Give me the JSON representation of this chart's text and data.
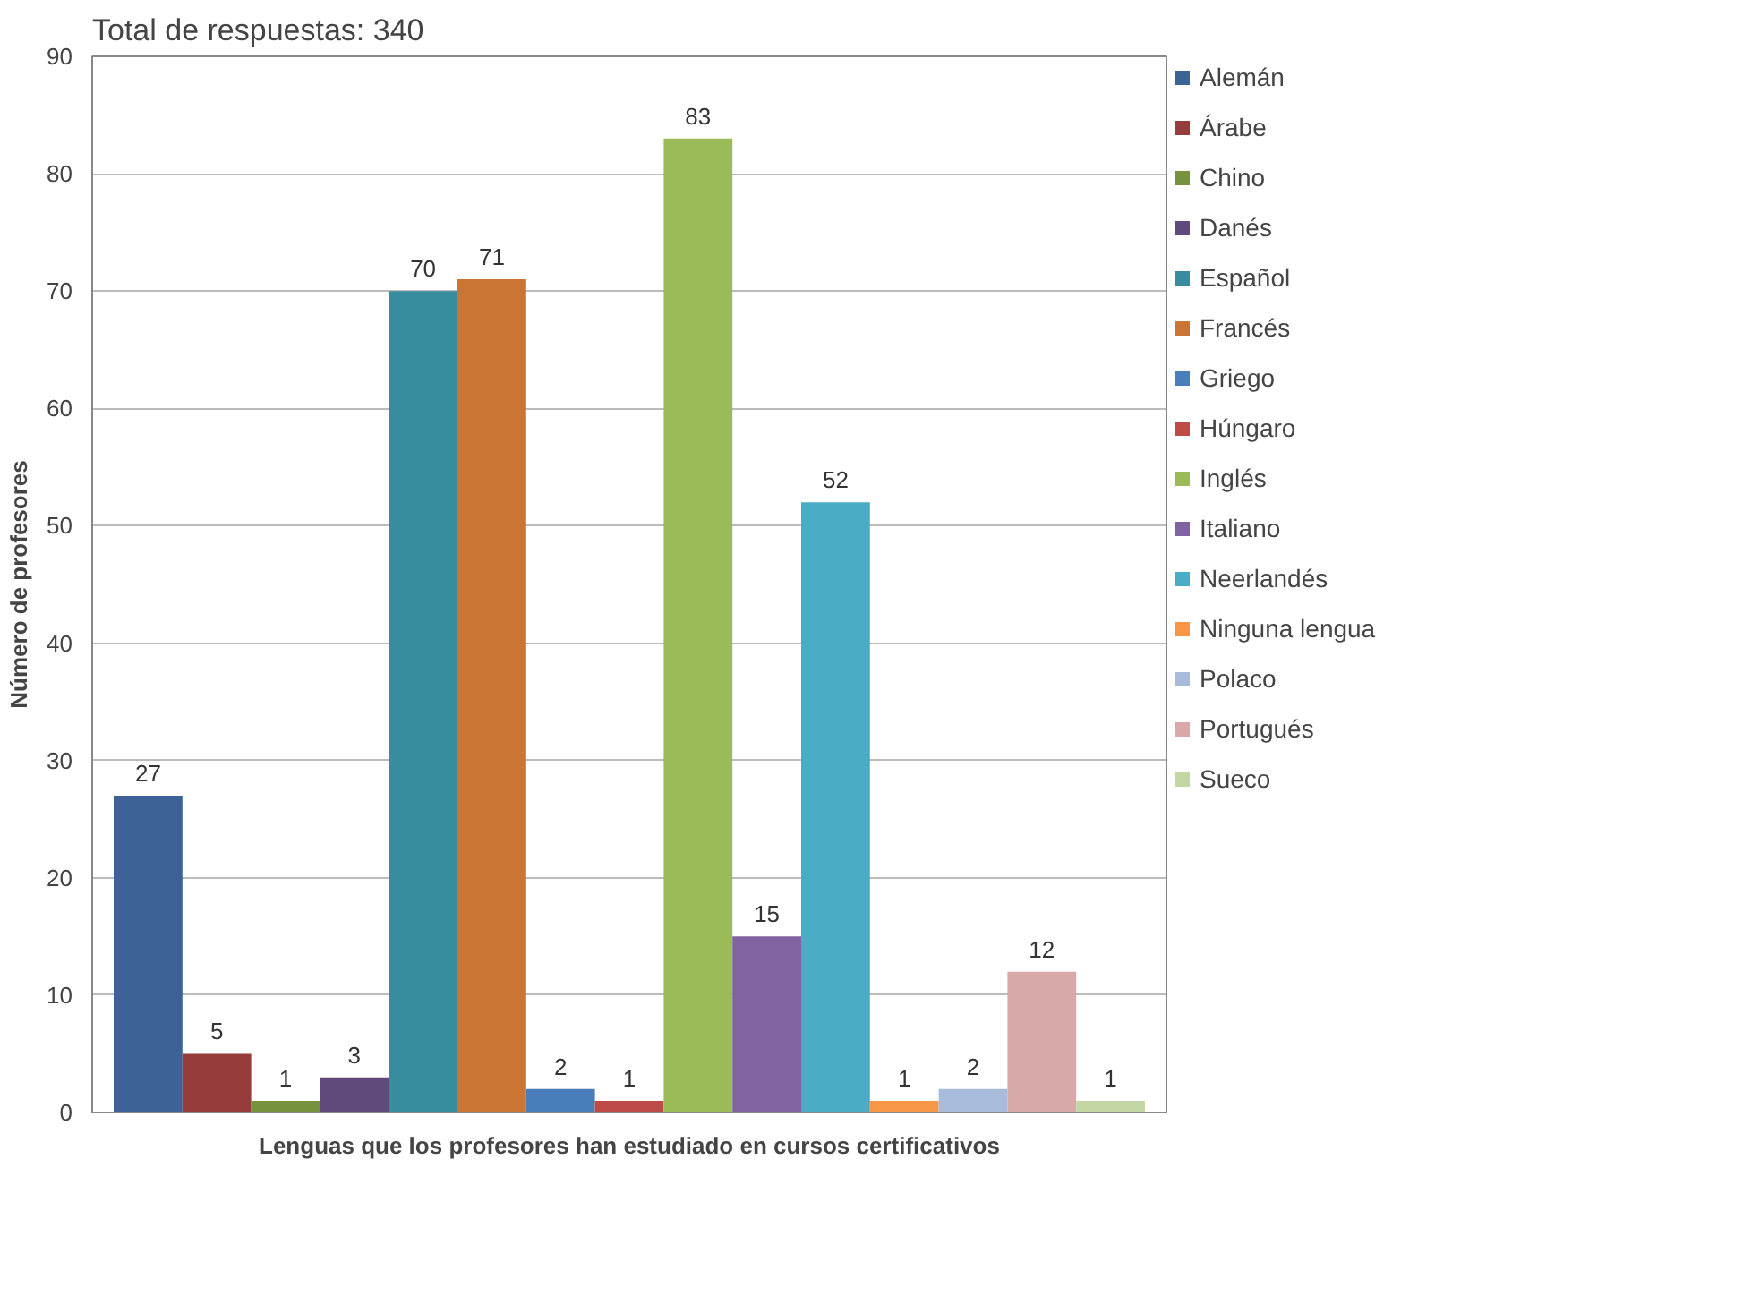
{
  "chart_data": {
    "type": "bar",
    "title": "Total de respuestas: 340",
    "xlabel": "Lenguas que los profesores han estudiado en cursos certificativos",
    "ylabel": "Número de profesores",
    "categories": [
      null
    ],
    "series": [
      {
        "name": "Alemán",
        "color": "#3d6396",
        "values": [
          27
        ]
      },
      {
        "name": "Árabe",
        "color": "#963c3a",
        "values": [
          5
        ]
      },
      {
        "name": "Chino",
        "color": "#76923c",
        "values": [
          1
        ]
      },
      {
        "name": "Danés",
        "color": "#604a7b",
        "values": [
          3
        ]
      },
      {
        "name": "Español",
        "color": "#378c9e",
        "values": [
          70
        ]
      },
      {
        "name": "Francés",
        "color": "#cb7534",
        "values": [
          71
        ]
      },
      {
        "name": "Griego",
        "color": "#4a7ebb",
        "values": [
          2
        ]
      },
      {
        "name": "Húngaro",
        "color": "#be4b48",
        "values": [
          1
        ]
      },
      {
        "name": "Inglés",
        "color": "#9bbb59",
        "values": [
          83
        ]
      },
      {
        "name": "Italiano",
        "color": "#8064a2",
        "values": [
          15
        ]
      },
      {
        "name": "Neerlandés",
        "color": "#4bacc6",
        "values": [
          52
        ]
      },
      {
        "name": "Ninguna lengua",
        "color": "#f79646",
        "values": [
          1
        ]
      },
      {
        "name": "Polaco",
        "color": "#a9bbdb",
        "values": [
          2
        ]
      },
      {
        "name": "Portugués",
        "color": "#d9a8a8",
        "values": [
          12
        ]
      },
      {
        "name": "Sueco",
        "color": "#c3d6a4",
        "values": [
          1
        ]
      }
    ],
    "ylim": [
      0,
      90
    ],
    "yticks": [
      0,
      10,
      20,
      30,
      40,
      50,
      60,
      70,
      80,
      90
    ],
    "grid": "y",
    "legend": "right",
    "tick_labels": "y",
    "data_labels": true
  }
}
